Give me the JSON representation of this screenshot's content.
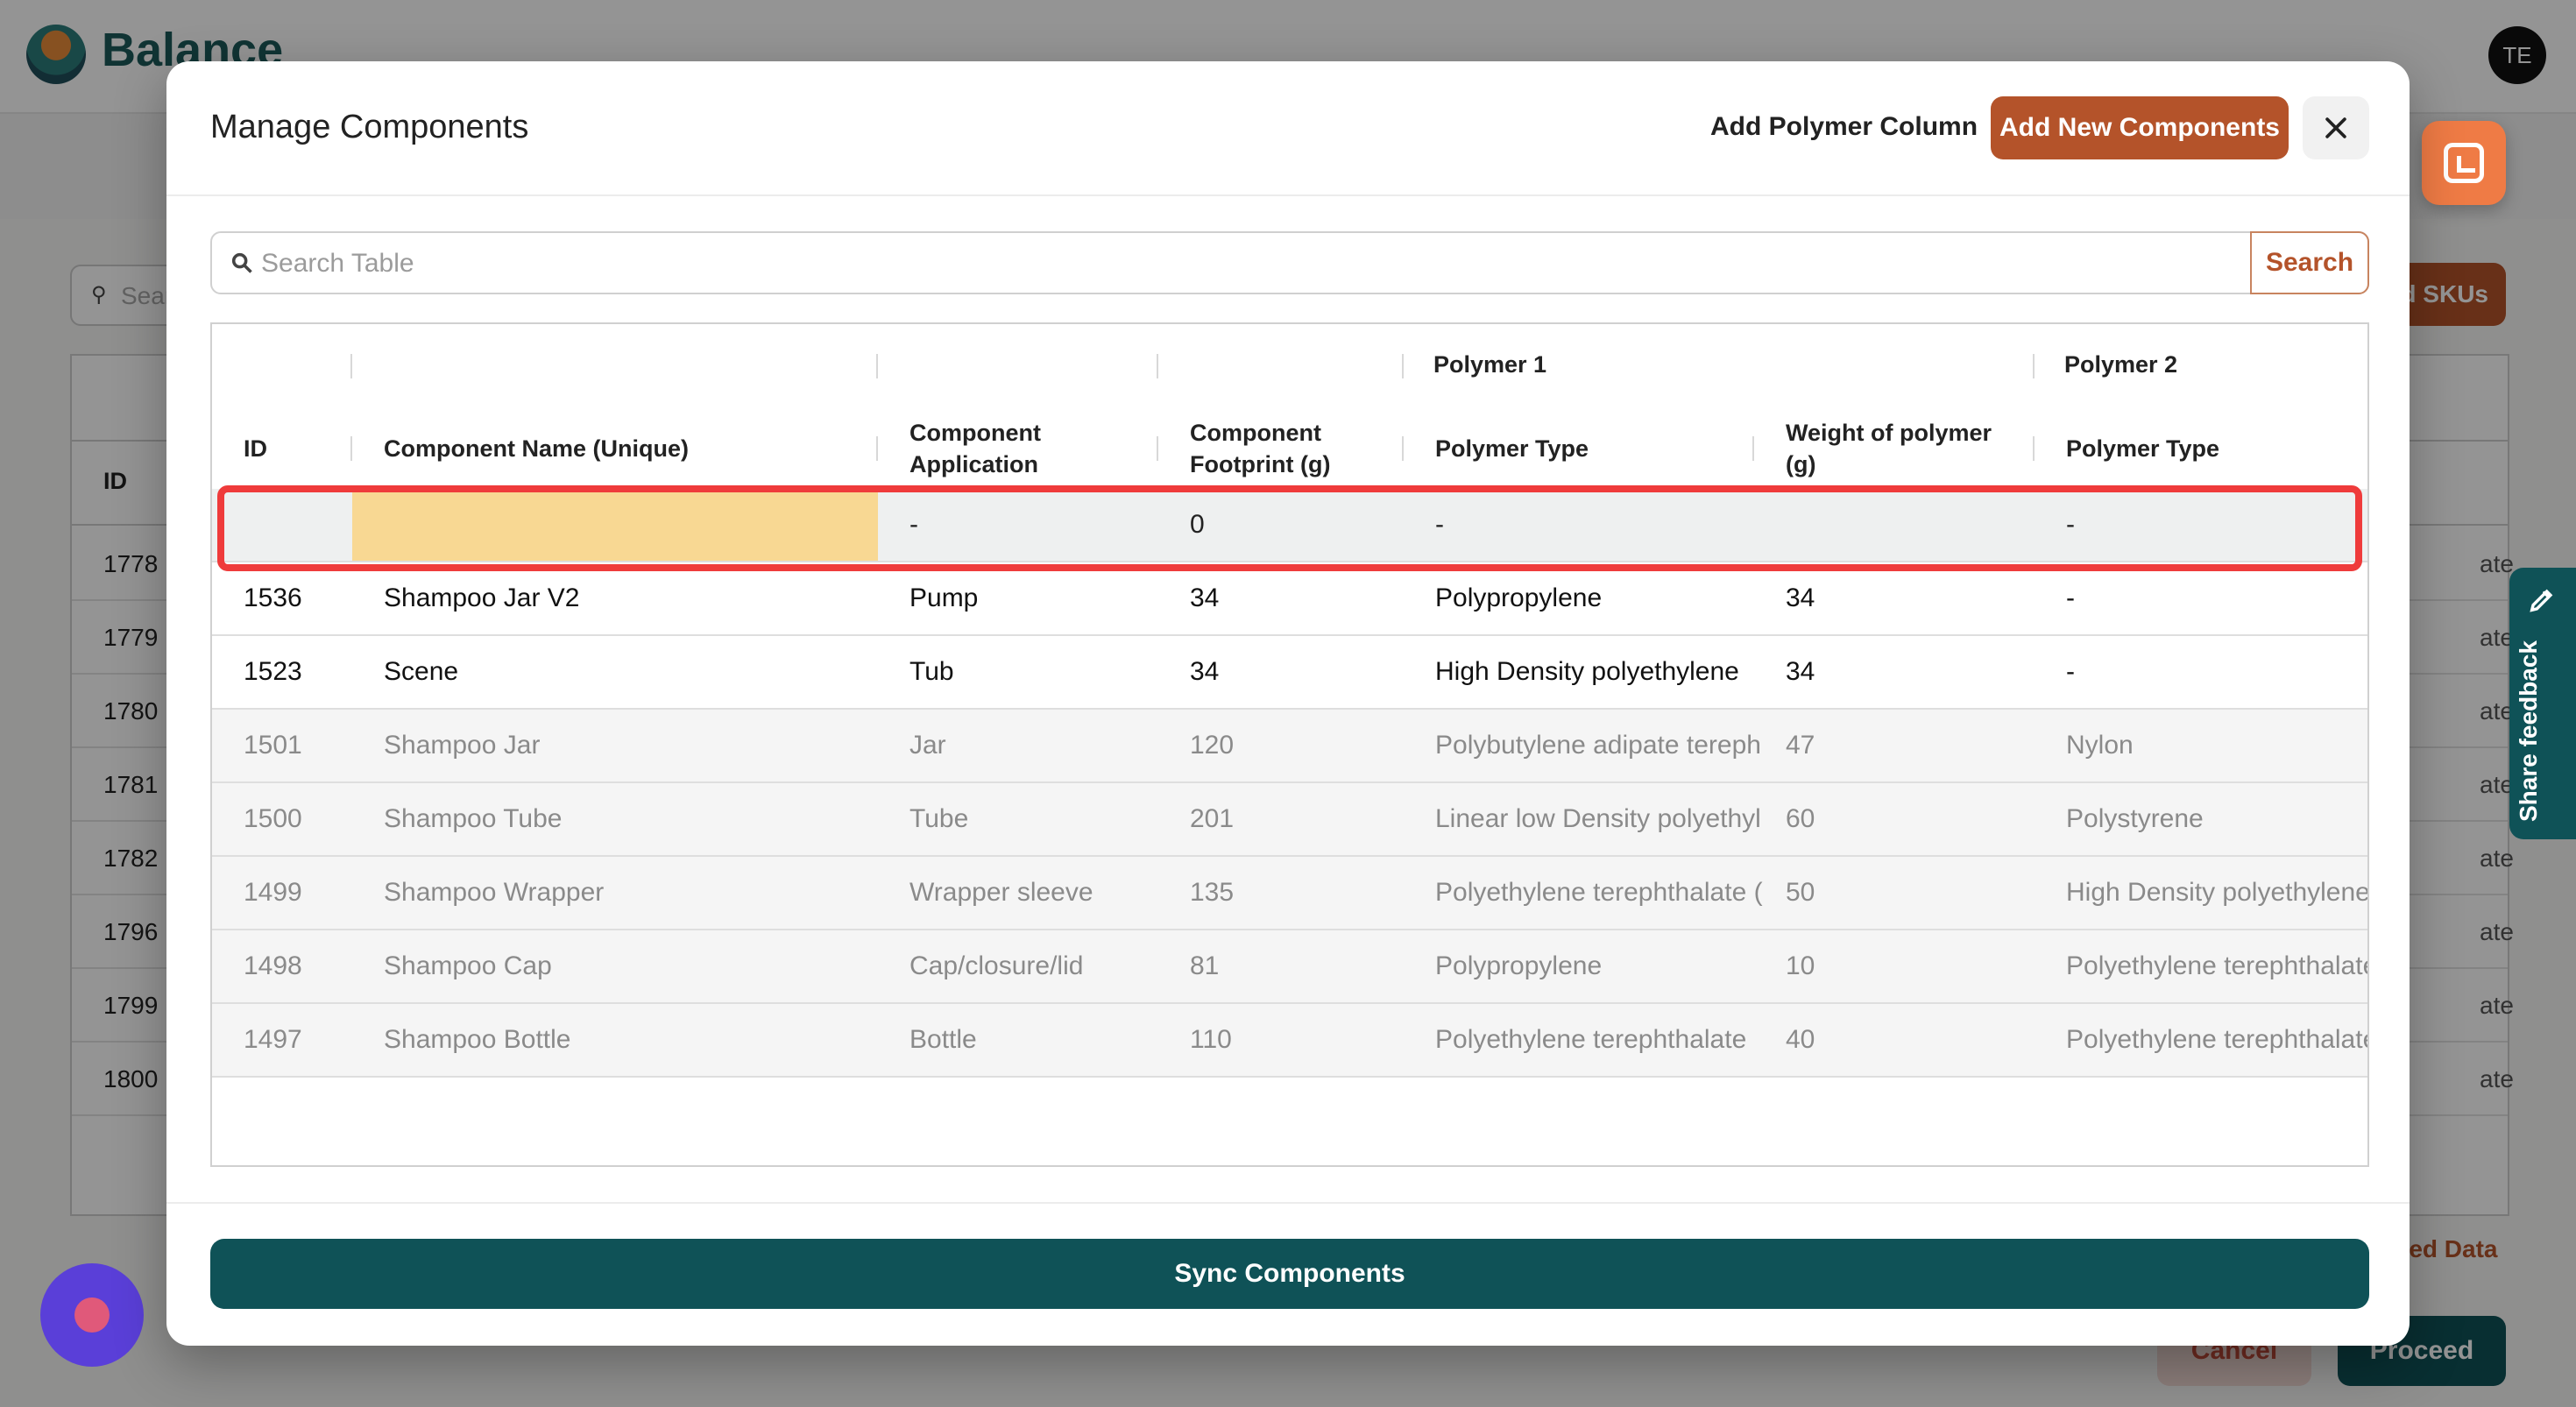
{
  "app": {
    "logo_text": "Balance",
    "avatar_initials": "TE"
  },
  "background": {
    "search_placeholder": "Sear",
    "add_skus_label": "d SKUs",
    "id_header": "ID",
    "row_ids": [
      "1778",
      "1779",
      "1780",
      "1781",
      "1782",
      "1796",
      "1799",
      "1800"
    ],
    "row_tail": "ate",
    "updated_data_label": "ted Data",
    "cancel_label": "Cancel",
    "proceed_label": "Proceed"
  },
  "feedback": {
    "label": "Share feedback"
  },
  "modal": {
    "title": "Manage Components",
    "add_polymer_column_label": "Add Polymer Column",
    "add_new_components_label": "Add New Components",
    "search": {
      "placeholder": "Search Table",
      "value": "",
      "button_label": "Search"
    },
    "groups": {
      "polymer1": "Polymer 1",
      "polymer2": "Polymer 2"
    },
    "columns": {
      "id": "ID",
      "name": "Component Name (Unique)",
      "application": "Component Application",
      "footprint": "Component Footprint (g)",
      "p1_type": "Polymer Type",
      "p1_weight": "Weight of polymer (g)",
      "p2_type": "Polymer Type"
    },
    "rows": [
      {
        "id": "",
        "name": "",
        "application": "-",
        "footprint": "0",
        "p1_type": "-",
        "p1_weight": "",
        "p2_type": "-"
      },
      {
        "id": "1536",
        "name": "Shampoo Jar V2",
        "application": "Pump",
        "footprint": "34",
        "p1_type": "Polypropylene",
        "p1_weight": "34",
        "p2_type": "-"
      },
      {
        "id": "1523",
        "name": "Scene",
        "application": "Tub",
        "footprint": "34",
        "p1_type": "High Density polyethylene",
        "p1_weight": "34",
        "p2_type": "-"
      },
      {
        "id": "1501",
        "name": "Shampoo Jar",
        "application": "Jar",
        "footprint": "120",
        "p1_type": "Polybutylene adipate tereph",
        "p1_weight": "47",
        "p2_type": "Nylon"
      },
      {
        "id": "1500",
        "name": "Shampoo Tube",
        "application": "Tube",
        "footprint": "201",
        "p1_type": "Linear low Density polyethyl",
        "p1_weight": "60",
        "p2_type": "Polystyrene"
      },
      {
        "id": "1499",
        "name": "Shampoo Wrapper",
        "application": "Wrapper sleeve",
        "footprint": "135",
        "p1_type": "Polyethylene terephthalate (",
        "p1_weight": "50",
        "p2_type": "High Density polyethylene"
      },
      {
        "id": "1498",
        "name": "Shampoo Cap",
        "application": "Cap/closure/lid",
        "footprint": "81",
        "p1_type": "Polypropylene",
        "p1_weight": "10",
        "p2_type": "Polyethylene terephthalate"
      },
      {
        "id": "1497",
        "name": "Shampoo Bottle",
        "application": "Bottle",
        "footprint": "110",
        "p1_type": "Polyethylene terephthalate",
        "p1_weight": "40",
        "p2_type": "Polyethylene terephthalate"
      }
    ],
    "sync_label": "Sync Components"
  },
  "colors": {
    "brand_teal": "#0f5257",
    "accent_orange": "#b4532a",
    "highlight_red": "#ef3b3b",
    "new_row_name_fill": "#f8d893"
  },
  "icons": [
    "search-icon",
    "close-icon",
    "chat-icon",
    "pencil-icon",
    "record-icon"
  ]
}
